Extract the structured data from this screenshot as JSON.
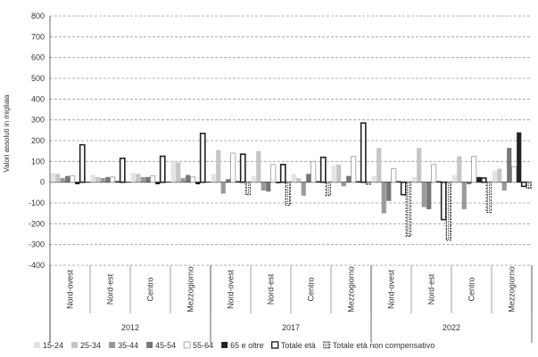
{
  "chart_data": {
    "type": "bar",
    "title": "",
    "ylabel": "Valori assoluti in migliaia",
    "xlabel": "",
    "ylim": [
      -400,
      800
    ],
    "yticks": [
      -400,
      -300,
      -200,
      -100,
      0,
      100,
      200,
      300,
      400,
      500,
      600,
      700,
      800
    ],
    "grid": "dashed horizontal",
    "legend_position": "bottom",
    "groups": [
      {
        "label": "2012",
        "categories": [
          "Nord-ovest",
          "Nord-est",
          "Centro",
          "Mezzogiorno"
        ]
      },
      {
        "label": "2017",
        "categories": [
          "Nord-ovest",
          "Nord-est",
          "Centro",
          "Mezzogiorno"
        ]
      },
      {
        "label": "2022",
        "categories": [
          "Nord-ovest",
          "Nord-est",
          "Centro",
          "Mezzogiorno"
        ]
      }
    ],
    "series": [
      {
        "name": "15-24",
        "color": "#e3e3e3",
        "style": "solid",
        "values": [
          45,
          35,
          45,
          100,
          40,
          30,
          40,
          80,
          30,
          25,
          35,
          55
        ]
      },
      {
        "name": "25-34",
        "color": "#c6c6c6",
        "style": "solid",
        "values": [
          40,
          25,
          40,
          95,
          155,
          150,
          20,
          85,
          165,
          165,
          125,
          65
        ]
      },
      {
        "name": "35-44",
        "color": "#9a9a9a",
        "style": "solid",
        "values": [
          20,
          20,
          25,
          20,
          -55,
          -40,
          -65,
          -20,
          -150,
          -120,
          -130,
          -40
        ]
      },
      {
        "name": "45-54",
        "color": "#777777",
        "style": "solid",
        "values": [
          30,
          25,
          25,
          35,
          15,
          -45,
          40,
          30,
          -90,
          -130,
          -10,
          165
        ]
      },
      {
        "name": "55-64",
        "color": "#ffffff",
        "style": "outline",
        "values": [
          30,
          25,
          30,
          25,
          140,
          85,
          100,
          125,
          65,
          85,
          125,
          75
        ]
      },
      {
        "name": "65 e oltre",
        "color": "#222222",
        "style": "solid",
        "values": [
          -10,
          5,
          -10,
          -10,
          5,
          -5,
          5,
          5,
          5,
          5,
          25,
          240
        ]
      },
      {
        "name": "Totale età",
        "color": "#ffffff",
        "style": "thick-outline",
        "values": [
          180,
          115,
          125,
          235,
          135,
          85,
          120,
          285,
          -60,
          -180,
          20,
          -20
        ]
      },
      {
        "name": "Totale età non compensativo",
        "color": "#ffffff",
        "style": "dashed-outline",
        "values": [
          0,
          0,
          0,
          0,
          -60,
          -110,
          -65,
          -10,
          -260,
          -280,
          -145,
          -30
        ]
      }
    ]
  }
}
